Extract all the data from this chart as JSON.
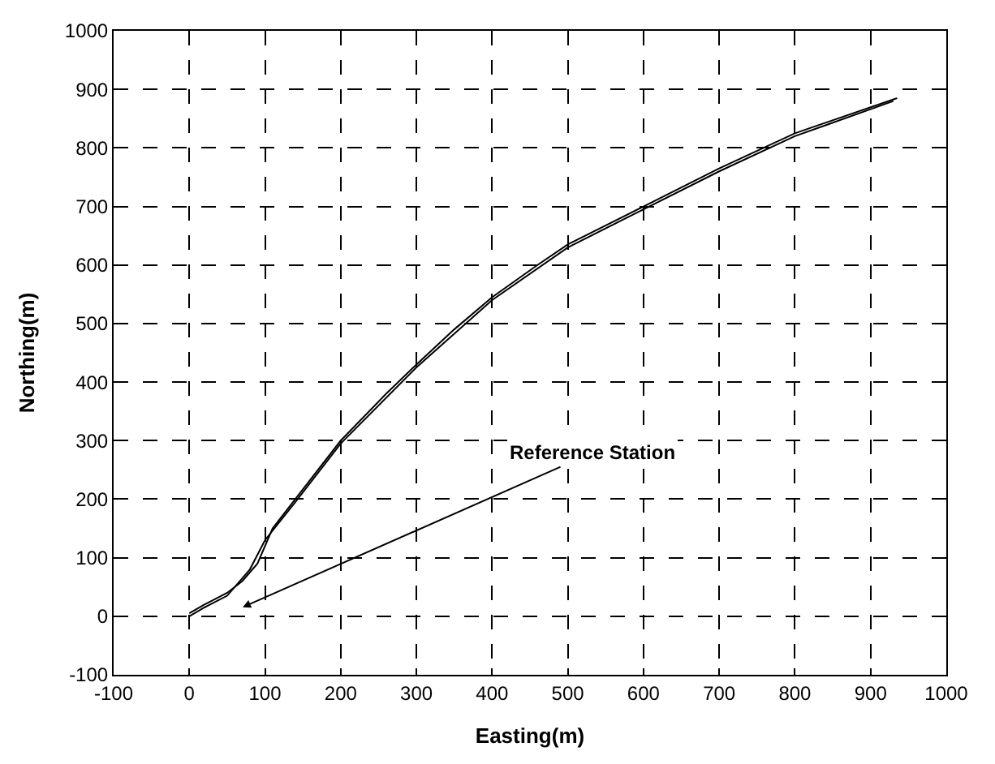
{
  "chart_data": {
    "type": "line",
    "xlabel": "Easting(m)",
    "ylabel": "Northing(m)",
    "series": [
      {
        "color": "#000000",
        "x": [
          0,
          20,
          50,
          70,
          90,
          110,
          140,
          200,
          260,
          300,
          350,
          400,
          460,
          500,
          600,
          700,
          800,
          935
        ],
        "values": [
          5,
          20,
          40,
          60,
          90,
          150,
          200,
          300,
          380,
          430,
          490,
          545,
          600,
          635,
          700,
          765,
          825,
          885
        ]
      },
      {
        "color": "#000000",
        "x": [
          930,
          800,
          700,
          600,
          500,
          400,
          300,
          200,
          140,
          100,
          80,
          50,
          20,
          0
        ],
        "values": [
          880,
          820,
          760,
          695,
          630,
          540,
          425,
          295,
          195,
          130,
          80,
          35,
          15,
          0
        ]
      }
    ],
    "annotations": [
      "Reference Station"
    ],
    "xlim": [
      -100,
      1000
    ],
    "xticks": [
      -100,
      0,
      100,
      200,
      300,
      400,
      500,
      600,
      700,
      800,
      900,
      1000
    ],
    "ylim": [
      -100,
      1000
    ],
    "yticks": [
      -100,
      0,
      100,
      200,
      300,
      400,
      500,
      600,
      700,
      800,
      900,
      1000
    ],
    "grid": true,
    "marker": "none",
    "line_style": "solid"
  }
}
